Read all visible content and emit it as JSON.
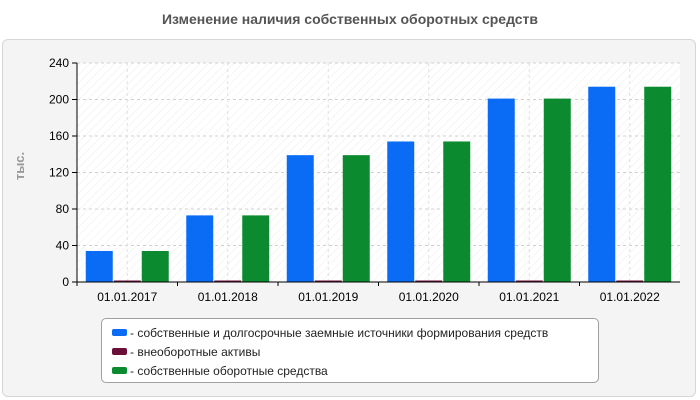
{
  "title": "Изменение наличия собственных оборотных средств",
  "colors": {
    "series1": "#0a6cf5",
    "series2": "#6a0f38",
    "series3": "#0b8a2f"
  },
  "chart_data": {
    "type": "bar",
    "title": "Изменение наличия собственных оборотных средств",
    "xlabel": "",
    "ylabel": "тыс.",
    "ylim": [
      0,
      240
    ],
    "yticks": [
      0,
      40,
      80,
      120,
      160,
      200,
      240
    ],
    "grid": true,
    "legend_position": "bottom",
    "categories": [
      "01.01.2017",
      "01.01.2018",
      "01.01.2019",
      "01.01.2020",
      "01.01.2021",
      "01.01.2022"
    ],
    "series": [
      {
        "name": "- собственные и долгосрочные заемные источники формирования средств",
        "values": [
          34,
          73,
          139,
          154,
          201,
          214
        ]
      },
      {
        "name": "- внеоборотные активы",
        "values": [
          1,
          1,
          1,
          1,
          1,
          1
        ]
      },
      {
        "name": "- собственные оборотные средства",
        "values": [
          34,
          73,
          139,
          154,
          201,
          214
        ]
      }
    ]
  }
}
